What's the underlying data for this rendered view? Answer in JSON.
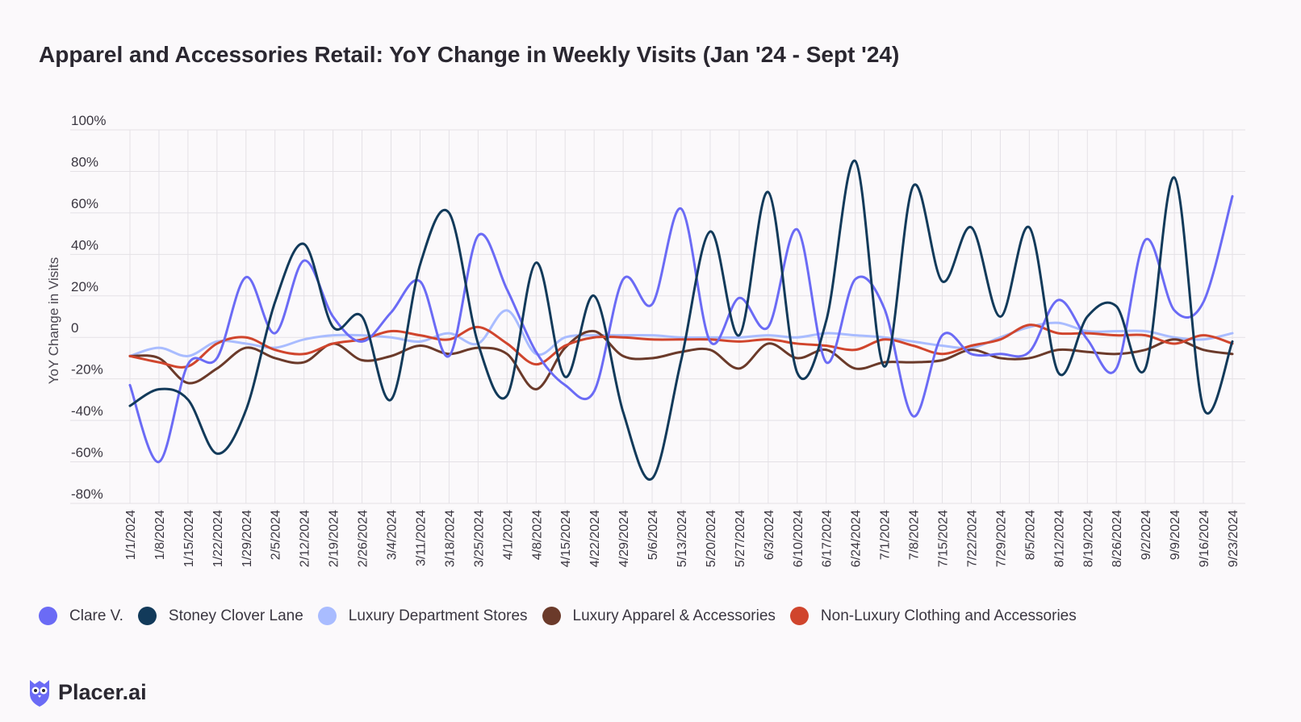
{
  "title": "Apparel and Accessories Retail: YoY Change in Weekly Visits (Jan '24 - Sept '24)",
  "brand": {
    "name": "Placer.ai",
    "icon": "placer-owl-icon",
    "color": "#6b6bf5"
  },
  "chart_data": {
    "type": "line",
    "title": "Apparel and Accessories Retail: YoY Change in Weekly Visits (Jan '24 - Sept '24)",
    "xlabel": "",
    "ylabel": "YoY Change in Visits",
    "ylim": [
      -80,
      100
    ],
    "yticks": [
      100,
      80,
      60,
      40,
      20,
      0,
      -20,
      -40,
      -60,
      -80
    ],
    "ytick_labels": [
      "100%",
      "80%",
      "60%",
      "40%",
      "20%",
      "0",
      "-20%",
      "-40%",
      "-60%",
      "-80%"
    ],
    "grid": true,
    "legend_position": "bottom-left",
    "x": [
      "1/1/2024",
      "1/8/2024",
      "1/15/2024",
      "1/22/2024",
      "1/29/2024",
      "2/5/2024",
      "2/12/2024",
      "2/19/2024",
      "2/26/2024",
      "3/4/2024",
      "3/11/2024",
      "3/18/2024",
      "3/25/2024",
      "4/1/2024",
      "4/8/2024",
      "4/15/2024",
      "4/22/2024",
      "4/29/2024",
      "5/6/2024",
      "5/13/2024",
      "5/20/2024",
      "5/27/2024",
      "6/3/2024",
      "6/10/2024",
      "6/17/2024",
      "6/24/2024",
      "7/1/2024",
      "7/8/2024",
      "7/15/2024",
      "7/22/2024",
      "7/29/2024",
      "8/5/2024",
      "8/12/2024",
      "8/19/2024",
      "8/26/2024",
      "9/2/2024",
      "9/9/2024",
      "9/16/2024",
      "9/23/2024"
    ],
    "series": [
      {
        "name": "Clare V.",
        "color": "#6b6bf5",
        "values": [
          -23,
          -60,
          -13,
          -10,
          29,
          2,
          37,
          10,
          -2,
          12,
          27,
          -9,
          49,
          23,
          -7,
          -23,
          -26,
          28,
          16,
          62,
          -2,
          19,
          5,
          52,
          -12,
          28,
          14,
          -38,
          1,
          -8,
          -8,
          -7,
          18,
          -1,
          -15,
          47,
          13,
          17,
          68
        ]
      },
      {
        "name": "Stoney Clover Lane",
        "color": "#123a5a",
        "values": [
          -33,
          -25,
          -30,
          -56,
          -35,
          17,
          45,
          5,
          10,
          -30,
          35,
          60,
          -3,
          -28,
          36,
          -19,
          20,
          -36,
          -68,
          -11,
          51,
          1,
          70,
          -17,
          8,
          85,
          -14,
          73,
          27,
          53,
          10,
          53,
          -17,
          10,
          15,
          -15,
          77,
          -34,
          -2
        ]
      },
      {
        "name": "Luxury Department Stores",
        "color": "#a9bcff",
        "values": [
          -9,
          -5,
          -9,
          -2,
          -3,
          -5,
          -1,
          1,
          1,
          0,
          -2,
          2,
          -3,
          13,
          -8,
          0,
          1,
          1,
          1,
          0,
          0,
          0,
          1,
          0,
          2,
          1,
          0,
          -2,
          -4,
          -5,
          0,
          5,
          7,
          3,
          3,
          3,
          0,
          -1,
          2
        ]
      },
      {
        "name": "Luxury Apparel & Accessories",
        "color": "#6b3a2a",
        "values": [
          -9,
          -10,
          -22,
          -15,
          -5,
          -10,
          -12,
          -3,
          -11,
          -9,
          -4,
          -8,
          -5,
          -8,
          -25,
          -5,
          3,
          -9,
          -10,
          -7,
          -6,
          -15,
          -3,
          -10,
          -6,
          -15,
          -12,
          -12,
          -11,
          -6,
          -10,
          -10,
          -6,
          -7,
          -8,
          -6,
          -1,
          -6,
          -8
        ]
      },
      {
        "name": "Non-Luxury Clothing and Accessories",
        "color": "#d0452d",
        "values": [
          -9,
          -12,
          -14,
          -3,
          0,
          -6,
          -8,
          -3,
          -1,
          3,
          1,
          -1,
          5,
          -3,
          -13,
          -4,
          0,
          0,
          -1,
          -1,
          -1,
          -2,
          -1,
          -3,
          -4,
          -6,
          -1,
          -4,
          -8,
          -4,
          -1,
          6,
          2,
          2,
          1,
          1,
          -3,
          1,
          -3
        ]
      }
    ]
  }
}
